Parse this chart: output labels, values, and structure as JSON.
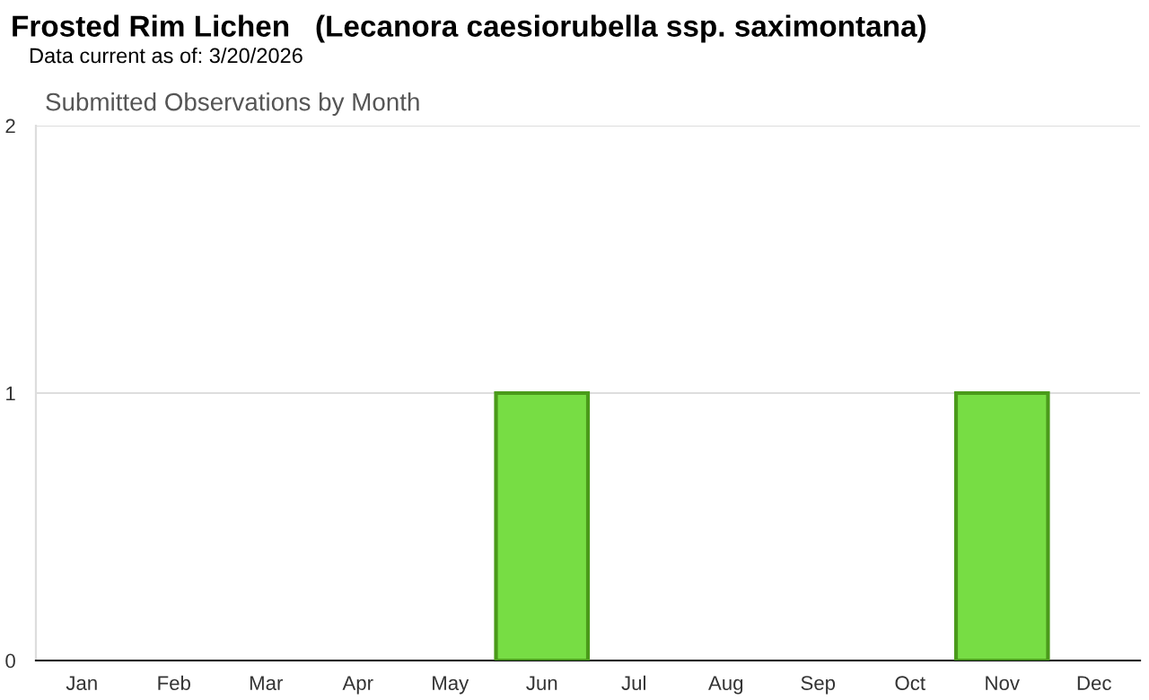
{
  "chart_data": {
    "type": "bar",
    "title": "Frosted Rim Lichen   (Lecanora caesiorubella ssp. saximontana)",
    "subtitle": "Data current as of: 3/20/2026",
    "annotations": [
      "Submitted Observations by Month"
    ],
    "categories": [
      "Jan",
      "Feb",
      "Mar",
      "Apr",
      "May",
      "Jun",
      "Jul",
      "Aug",
      "Sep",
      "Oct",
      "Nov",
      "Dec"
    ],
    "values": [
      0,
      0,
      0,
      0,
      0,
      1,
      0,
      0,
      0,
      0,
      1,
      0
    ],
    "color": "#77dd44",
    "ylim": [
      0,
      2
    ],
    "yticks": [
      0,
      1,
      2
    ],
    "grid": "y",
    "legend": false
  }
}
